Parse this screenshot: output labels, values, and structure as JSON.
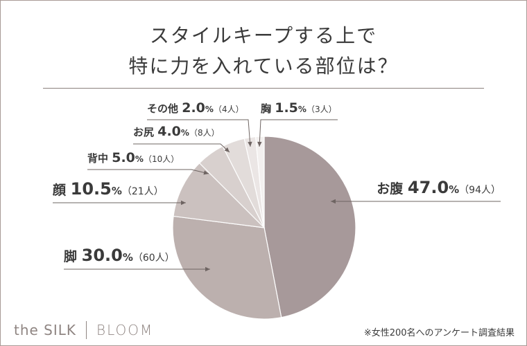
{
  "title_line1": "スタイルキープする上で",
  "title_line2": "特に力を入れている部位は？",
  "footnote": "※女性200名へのアンケート調査結果",
  "logo": {
    "left": "the SILK",
    "right": "BLOOM"
  },
  "chart_data": {
    "type": "pie",
    "title": "スタイルキープする上で特に力を入れている部位は？",
    "slices": [
      {
        "name": "お腹",
        "percent": 47.0,
        "pct_label": "47.0",
        "count_label": "（94人）",
        "color": "#a7999a"
      },
      {
        "name": "脚",
        "percent": 30.0,
        "pct_label": "30.0",
        "count_label": "（60人）",
        "color": "#bcb0ae"
      },
      {
        "name": "顔",
        "percent": 10.5,
        "pct_label": "10.5",
        "count_label": "（21人）",
        "color": "#cbc1bf"
      },
      {
        "name": "背中",
        "percent": 5.0,
        "pct_label": "5.0",
        "count_label": "（10人）",
        "color": "#d8d0ce"
      },
      {
        "name": "お尻",
        "percent": 4.0,
        "pct_label": "4.0",
        "count_label": "（8人）",
        "color": "#e2dcda"
      },
      {
        "name": "その他",
        "percent": 2.0,
        "pct_label": "2.0",
        "count_label": "（4人）",
        "color": "#ebe6e5"
      },
      {
        "name": "胸",
        "percent": 1.5,
        "pct_label": "1.5",
        "count_label": "（3人）",
        "color": "#f3f0ef"
      }
    ],
    "pct_suffix": "%"
  }
}
